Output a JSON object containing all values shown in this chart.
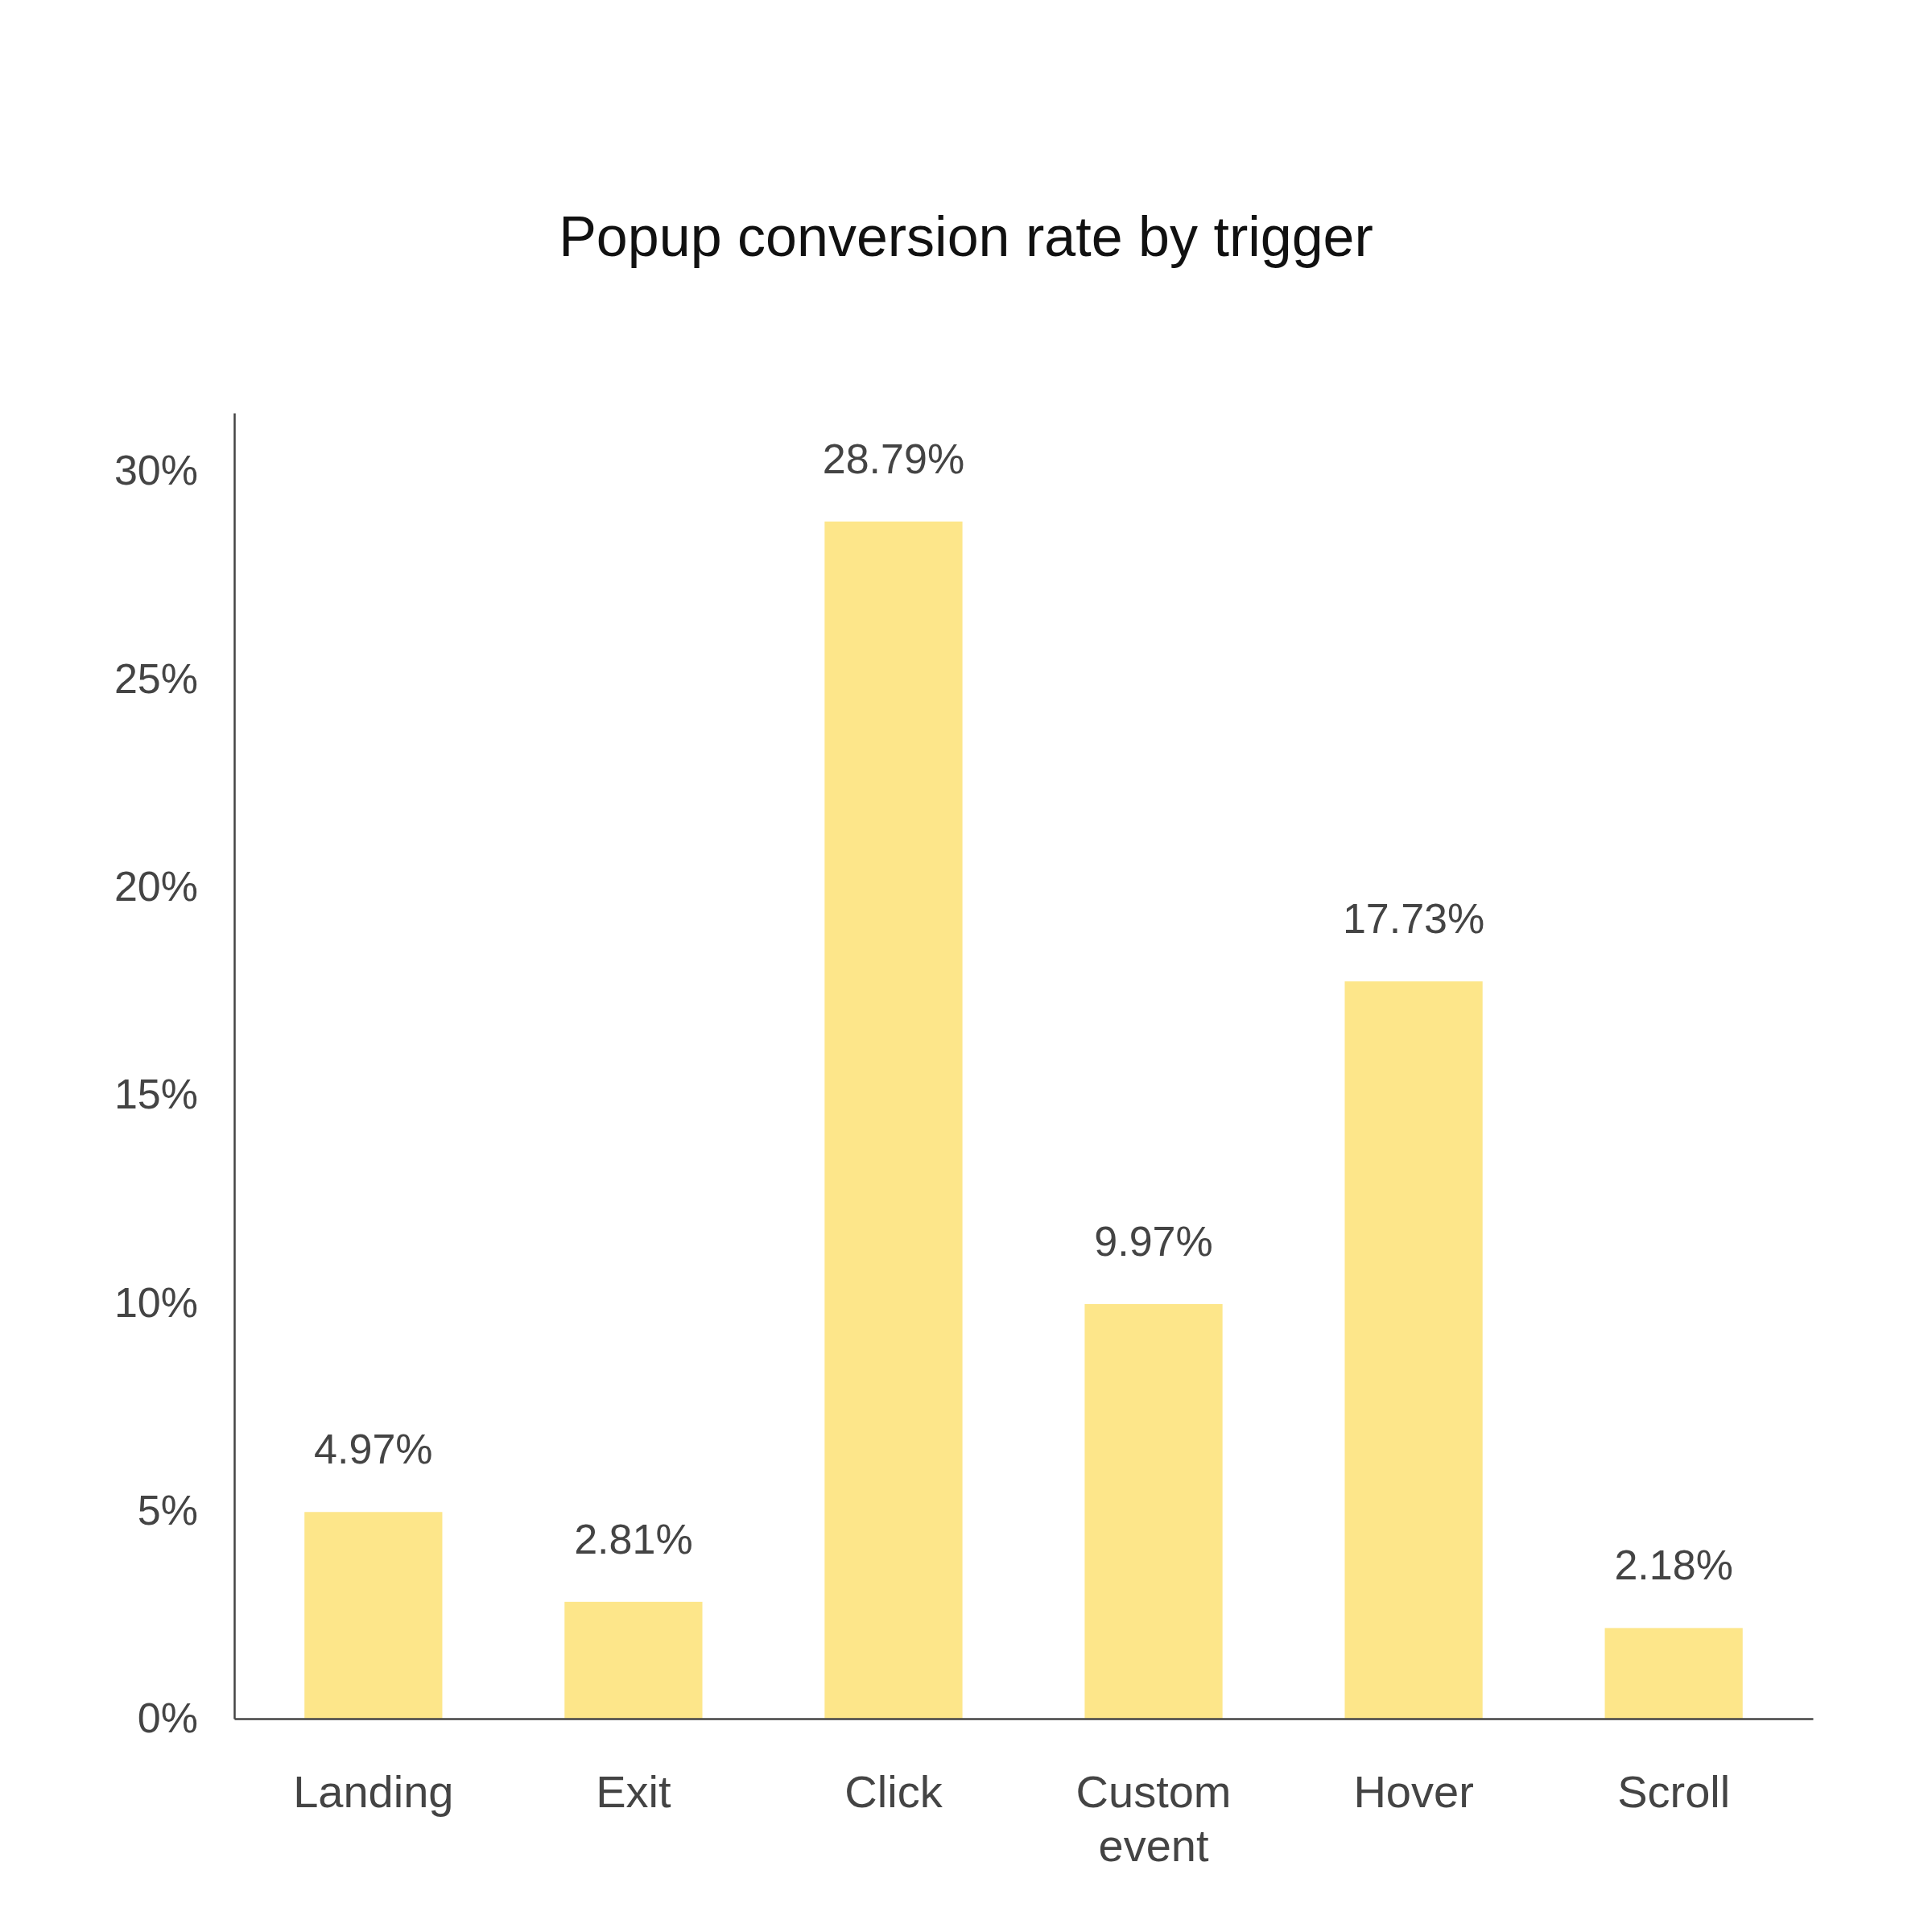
{
  "chart_data": {
    "type": "bar",
    "title": "Popup conversion rate by trigger",
    "categories": [
      "Landing",
      "Exit",
      "Click",
      "Custom event",
      "Hover",
      "Scroll"
    ],
    "values": [
      4.97,
      2.81,
      28.79,
      9.97,
      17.73,
      2.18
    ],
    "value_labels": [
      "4.97%",
      "2.81%",
      "28.79%",
      "9.97%",
      "17.73%",
      "2.18%"
    ],
    "color": "#fde68a",
    "ylim": [
      0,
      31.4
    ],
    "yticks": [
      {
        "value": 0,
        "label": "0%"
      },
      {
        "value": 5,
        "label": "5%"
      },
      {
        "value": 10,
        "label": "10%"
      },
      {
        "value": 15,
        "label": "15%"
      },
      {
        "value": 20,
        "label": "20%"
      },
      {
        "value": 25,
        "label": "25%"
      },
      {
        "value": 30,
        "label": "30%"
      }
    ],
    "grid": false
  }
}
